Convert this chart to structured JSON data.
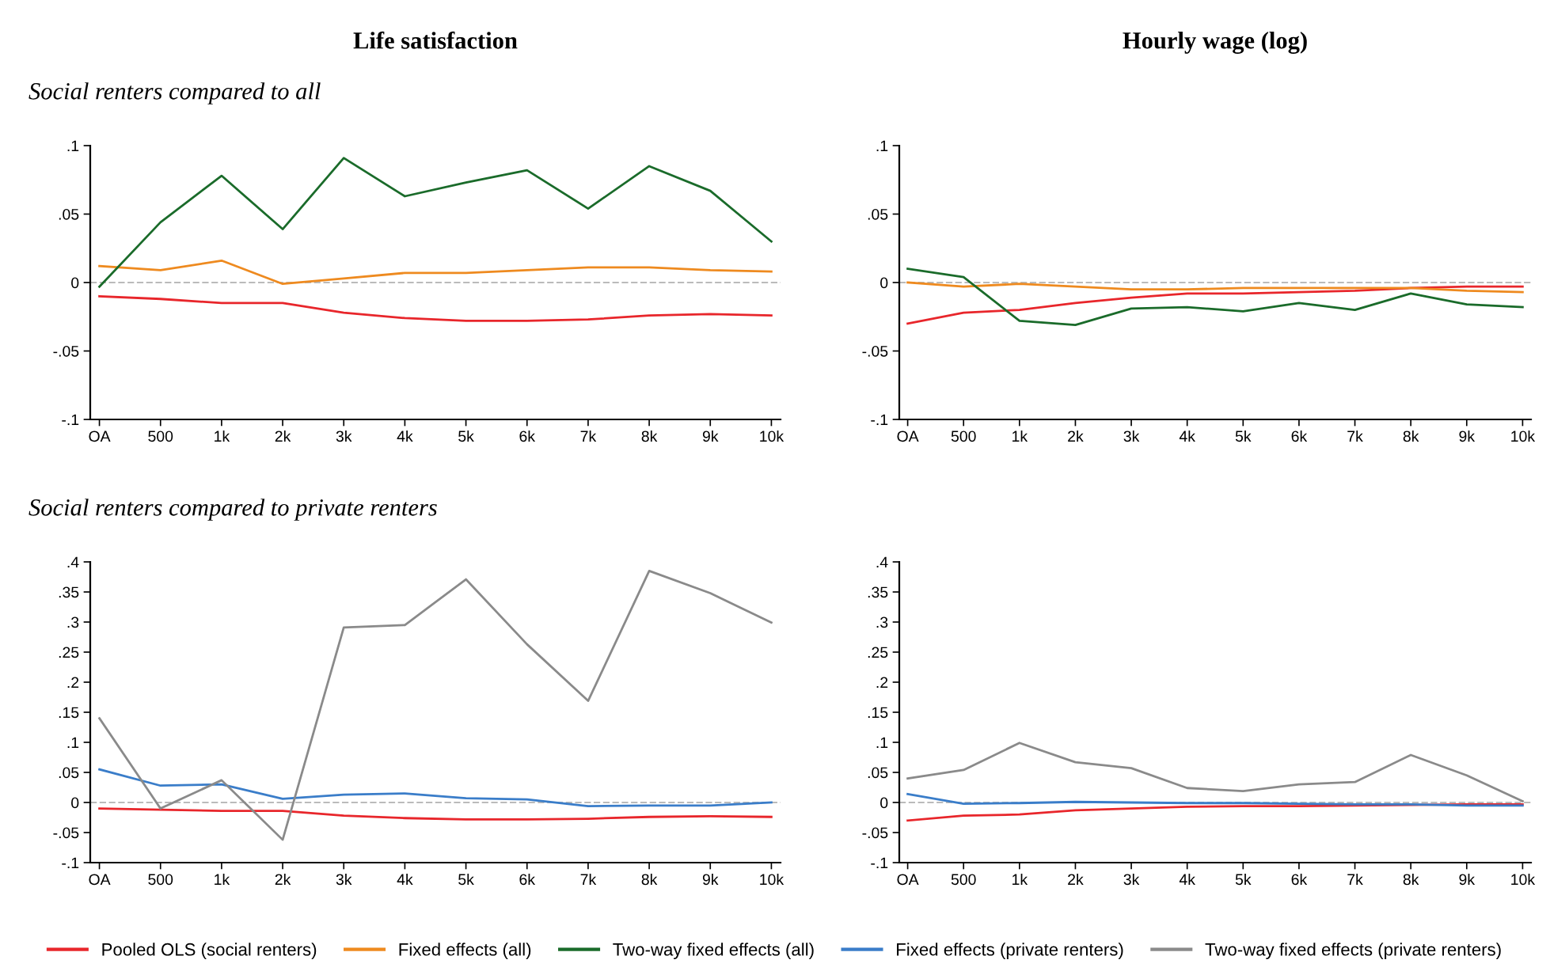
{
  "chart_data": [
    {
      "type": "line",
      "title": "Life satisfaction",
      "subtitle": "Social renters compared to all",
      "categories": [
        "OA",
        "500",
        "1k",
        "2k",
        "3k",
        "4k",
        "5k",
        "6k",
        "7k",
        "8k",
        "9k",
        "10k"
      ],
      "series": [
        {
          "name": "Pooled OLS (social renters)",
          "color": "#e8262b",
          "values": [
            -0.01,
            -0.012,
            -0.015,
            -0.015,
            -0.022,
            -0.026,
            -0.028,
            -0.028,
            -0.027,
            -0.024,
            -0.023,
            -0.024
          ]
        },
        {
          "name": "Fixed effects (all)",
          "color": "#ee8a1f",
          "values": [
            0.012,
            0.009,
            0.016,
            -0.001,
            0.003,
            0.007,
            0.007,
            0.009,
            0.011,
            0.011,
            0.009,
            0.008
          ]
        },
        {
          "name": "Two-way fixed effects (all)",
          "color": "#1a6b2a",
          "values": [
            -0.003,
            0.044,
            0.078,
            0.039,
            0.091,
            0.063,
            0.073,
            0.082,
            0.054,
            0.085,
            0.067,
            0.03
          ]
        }
      ],
      "ylim": [
        -0.1,
        0.1
      ],
      "yticks": [
        {
          "value": -0.1,
          "label": "-.1"
        },
        {
          "value": -0.05,
          "label": "-.05"
        },
        0,
        {
          "value": 0.05,
          "label": ".05"
        },
        {
          "value": 0.1,
          "label": ".1"
        }
      ],
      "ref_lines": [
        {
          "axis": "y",
          "value": 0,
          "label": null,
          "color": "#bbbbbb",
          "line_style": "dashed"
        }
      ],
      "grid": false,
      "legend": "bottom"
    },
    {
      "type": "line",
      "title": "Hourly wage (log)",
      "categories": [
        "OA",
        "500",
        "1k",
        "2k",
        "3k",
        "4k",
        "5k",
        "6k",
        "7k",
        "8k",
        "9k",
        "10k"
      ],
      "series": [
        {
          "name": "Pooled OLS (social renters)",
          "color": "#e8262b",
          "values": [
            -0.03,
            -0.022,
            -0.02,
            -0.015,
            -0.011,
            -0.008,
            -0.008,
            -0.007,
            -0.006,
            -0.004,
            -0.003,
            -0.003
          ]
        },
        {
          "name": "Fixed effects (all)",
          "color": "#ee8a1f",
          "values": [
            0,
            -0.003,
            -0.001,
            -0.003,
            -0.005,
            -0.005,
            -0.004,
            -0.004,
            -0.004,
            -0.004,
            -0.006,
            -0.007
          ]
        },
        {
          "name": "Two-way fixed effects (all)",
          "color": "#1a6b2a",
          "values": [
            0.01,
            0.004,
            -0.028,
            -0.031,
            -0.019,
            -0.018,
            -0.021,
            -0.015,
            -0.02,
            -0.008,
            -0.016,
            -0.018
          ]
        }
      ],
      "ylim": [
        -0.1,
        0.1
      ],
      "yticks": [
        {
          "value": -0.1,
          "label": "-.1"
        },
        {
          "value": -0.05,
          "label": "-.05"
        },
        0,
        {
          "value": 0.05,
          "label": ".05"
        },
        {
          "value": 0.1,
          "label": ".1"
        }
      ],
      "ref_lines": [
        {
          "axis": "y",
          "value": 0,
          "label": null,
          "color": "#bbbbbb",
          "line_style": "dashed"
        }
      ],
      "grid": false,
      "legend": "bottom"
    },
    {
      "type": "line",
      "subtitle": "Social renters compared to private renters",
      "categories": [
        "OA",
        "500",
        "1k",
        "2k",
        "3k",
        "4k",
        "5k",
        "6k",
        "7k",
        "8k",
        "9k",
        "10k"
      ],
      "series": [
        {
          "name": "Pooled OLS (social renters)",
          "color": "#e8262b",
          "values": [
            -0.01,
            -0.012,
            -0.014,
            -0.014,
            -0.022,
            -0.026,
            -0.028,
            -0.028,
            -0.027,
            -0.024,
            -0.023,
            -0.024
          ]
        },
        {
          "name": "Fixed effects (private renters)",
          "color": "#3a7dc9",
          "values": [
            0.055,
            0.028,
            0.03,
            0.006,
            0.013,
            0.015,
            0.007,
            0.005,
            -0.006,
            -0.005,
            -0.005,
            0
          ]
        },
        {
          "name": "Two-way fixed effects (private renters)",
          "color": "#8a8a8a",
          "values": [
            0.14,
            -0.01,
            0.037,
            -0.062,
            0.291,
            0.295,
            0.371,
            0.263,
            0.169,
            0.385,
            0.348,
            0.299
          ]
        }
      ],
      "ylim": [
        -0.1,
        0.4
      ],
      "yticks": [
        {
          "value": -0.1,
          "label": "-.1"
        },
        {
          "value": -0.05,
          "label": "-.05"
        },
        0,
        {
          "value": 0.05,
          "label": ".05"
        },
        {
          "value": 0.1,
          "label": ".1"
        },
        {
          "value": 0.15,
          "label": ".15"
        },
        {
          "value": 0.2,
          "label": ".2"
        },
        {
          "value": 0.25,
          "label": ".25"
        },
        {
          "value": 0.3,
          "label": ".3"
        },
        {
          "value": 0.35,
          "label": ".35"
        },
        {
          "value": 0.4,
          "label": ".4"
        }
      ],
      "ref_lines": [
        {
          "axis": "y",
          "value": 0,
          "label": null,
          "color": "#bbbbbb",
          "line_style": "dashed"
        }
      ],
      "grid": false,
      "legend": "bottom"
    },
    {
      "type": "line",
      "categories": [
        "OA",
        "500",
        "1k",
        "2k",
        "3k",
        "4k",
        "5k",
        "6k",
        "7k",
        "8k",
        "9k",
        "10k"
      ],
      "series": [
        {
          "name": "Pooled OLS (social renters)",
          "color": "#e8262b",
          "values": [
            -0.03,
            -0.022,
            -0.02,
            -0.013,
            -0.01,
            -0.007,
            -0.006,
            -0.006,
            -0.005,
            -0.004,
            -0.003,
            -0.003
          ]
        },
        {
          "name": "Fixed effects (private renters)",
          "color": "#3a7dc9",
          "values": [
            0.014,
            -0.002,
            -0.001,
            0.001,
            0,
            -0.001,
            -0.001,
            -0.002,
            -0.003,
            -0.003,
            -0.005,
            -0.005
          ]
        },
        {
          "name": "Two-way fixed effects (private renters)",
          "color": "#8a8a8a",
          "values": [
            0.04,
            0.054,
            0.099,
            0.067,
            0.057,
            0.024,
            0.019,
            0.03,
            0.034,
            0.079,
            0.045,
            0.002
          ]
        }
      ],
      "ylim": [
        -0.1,
        0.4
      ],
      "yticks": [
        {
          "value": -0.1,
          "label": "-.1"
        },
        {
          "value": -0.05,
          "label": "-.05"
        },
        0,
        {
          "value": 0.05,
          "label": ".05"
        },
        {
          "value": 0.1,
          "label": ".1"
        },
        {
          "value": 0.15,
          "label": ".15"
        },
        {
          "value": 0.2,
          "label": ".2"
        },
        {
          "value": 0.25,
          "label": ".25"
        },
        {
          "value": 0.3,
          "label": ".3"
        },
        {
          "value": 0.35,
          "label": ".35"
        },
        {
          "value": 0.4,
          "label": ".4"
        }
      ],
      "ref_lines": [
        {
          "axis": "y",
          "value": 0,
          "label": null,
          "color": "#bbbbbb",
          "line_style": "dashed"
        }
      ],
      "grid": false,
      "legend": "bottom"
    }
  ]
}
